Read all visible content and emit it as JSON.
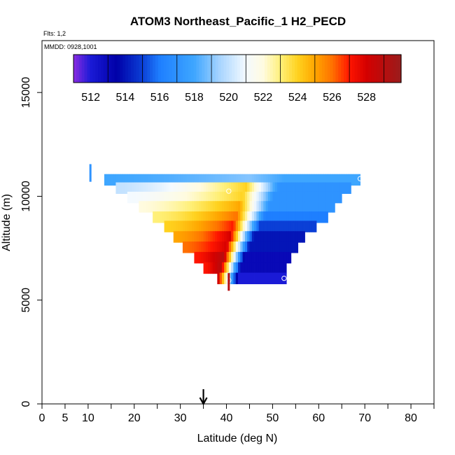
{
  "chart_data": {
    "type": "heatmap",
    "title": "ATOM3 Northeast_Pacific_1 H2_PECD",
    "flights_note": "Flts: 1,2",
    "date_note": "MMDD: 0928,1001",
    "xlabel": "Latitude (deg N)",
    "ylabel": "Altitude (m)",
    "xlim": [
      0,
      85
    ],
    "ylim": [
      0,
      17500
    ],
    "xticks": [
      0,
      5,
      10,
      15,
      20,
      25,
      30,
      35,
      40,
      45,
      50,
      55,
      60,
      65,
      70,
      75,
      80,
      85
    ],
    "xtick_labels": [
      "0",
      "5",
      "10",
      "20",
      "30",
      "40",
      "50",
      "60",
      "70",
      "80"
    ],
    "xtick_label_values": [
      0,
      5,
      10,
      20,
      30,
      40,
      50,
      60,
      70,
      80
    ],
    "yticks": [
      0,
      5000,
      10000,
      15000
    ],
    "ytick_labels": [
      "0",
      "5000",
      "10000",
      "15000"
    ],
    "colorbar": {
      "range": [
        511,
        530
      ],
      "tick_values": [
        512,
        514,
        516,
        518,
        520,
        522,
        524,
        526,
        528
      ],
      "tick_labels": [
        "512",
        "514",
        "516",
        "518",
        "520",
        "522",
        "524",
        "526",
        "528"
      ],
      "divider_values": [
        511,
        513,
        515,
        517,
        519,
        521,
        523,
        525,
        527,
        529,
        530
      ],
      "color_stops": [
        {
          "v": 511,
          "c": "#8a2be2"
        },
        {
          "v": 512,
          "c": "#1a1ad6"
        },
        {
          "v": 513.5,
          "c": "#0000a8"
        },
        {
          "v": 515,
          "c": "#0b3fd6"
        },
        {
          "v": 516,
          "c": "#1e7fff"
        },
        {
          "v": 518,
          "c": "#3ea6ff"
        },
        {
          "v": 519.5,
          "c": "#a9d5ff"
        },
        {
          "v": 521,
          "c": "#f4faff"
        },
        {
          "v": 522,
          "c": "#fffbe0"
        },
        {
          "v": 523,
          "c": "#fff07a"
        },
        {
          "v": 524,
          "c": "#ffd21f"
        },
        {
          "v": 525,
          "c": "#ffa600"
        },
        {
          "v": 526,
          "c": "#ff7200"
        },
        {
          "v": 527,
          "c": "#ff1500"
        },
        {
          "v": 528,
          "c": "#d40000"
        },
        {
          "v": 530,
          "c": "#9a1c1c"
        }
      ]
    },
    "section": {
      "lat_edges": [
        14.5,
        69.5
      ],
      "lat_ridge": [
        38,
        45
      ],
      "rows": [
        {
          "alt": 10800,
          "lat_min": 13.5,
          "lat_max": 69.0,
          "south_val": 518,
          "ridge_val": 519,
          "north_val": 518
        },
        {
          "alt": 10400,
          "lat_min": 16.0,
          "lat_max": 67.0,
          "south_val": 520,
          "ridge_val": 524,
          "north_val": 517
        },
        {
          "alt": 9950,
          "lat_min": 18.5,
          "lat_max": 65.0,
          "south_val": 521,
          "ridge_val": 524,
          "north_val": 517
        },
        {
          "alt": 9500,
          "lat_min": 21.0,
          "lat_max": 63.5,
          "south_val": 522,
          "ridge_val": 525,
          "north_val": 517
        },
        {
          "alt": 9000,
          "lat_min": 24.0,
          "lat_max": 62.0,
          "south_val": 523,
          "ridge_val": 526,
          "north_val": 516
        },
        {
          "alt": 8550,
          "lat_min": 26.5,
          "lat_max": 59.5,
          "south_val": 524,
          "ridge_val": 527,
          "north_val": 515
        },
        {
          "alt": 8050,
          "lat_min": 28.5,
          "lat_max": 57.0,
          "south_val": 525,
          "ridge_val": 528,
          "north_val": 514
        },
        {
          "alt": 7550,
          "lat_min": 30.5,
          "lat_max": 55.5,
          "south_val": 526,
          "ridge_val": 528,
          "north_val": 514
        },
        {
          "alt": 7050,
          "lat_min": 33.0,
          "lat_max": 54.0,
          "south_val": 527,
          "ridge_val": 529,
          "north_val": 513
        },
        {
          "alt": 6550,
          "lat_min": 35.0,
          "lat_max": 53.0,
          "south_val": 527,
          "ridge_val": 529,
          "north_val": 513
        },
        {
          "alt": 6050,
          "lat_min": 38.0,
          "lat_max": 53.0,
          "south_val": 528,
          "ridge_val": 529,
          "north_val": 512
        }
      ]
    },
    "sample_points": [
      {
        "lat": 10.5,
        "alt": 11200,
        "value": 517
      },
      {
        "lat": 40.5,
        "alt": 10250,
        "value": 524
      },
      {
        "lat": 69.0,
        "alt": 10850,
        "value": 517
      },
      {
        "lat": 40.5,
        "alt": 5950,
        "value": 529
      },
      {
        "lat": 52.5,
        "alt": 6050,
        "value": 512
      }
    ],
    "marker": {
      "lat": 35.0,
      "label": "current latitude arrow"
    }
  }
}
